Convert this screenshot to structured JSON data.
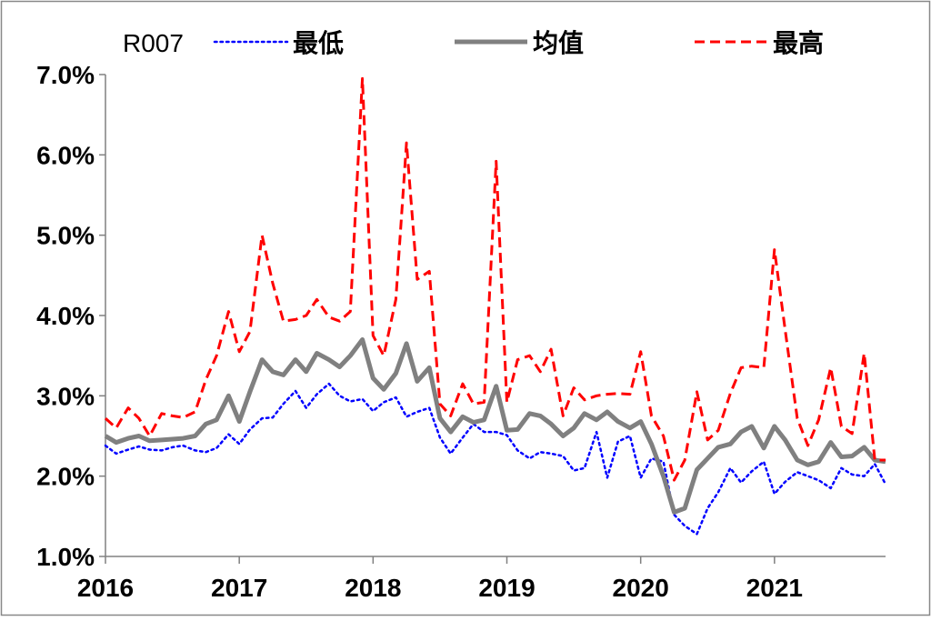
{
  "chart_data": {
    "type": "line",
    "legend_title": "R007",
    "legend_position": "top",
    "grid": false,
    "ylim": [
      0.01,
      0.07
    ],
    "yticks": [
      0.01,
      0.02,
      0.03,
      0.04,
      0.05,
      0.06,
      0.07
    ],
    "ytick_labels": [
      "1.0%",
      "2.0%",
      "3.0%",
      "4.0%",
      "5.0%",
      "6.0%",
      "7.0%"
    ],
    "xlim": [
      2016.0,
      2021.83
    ],
    "xticks": [
      2016,
      2017,
      2018,
      2019,
      2020,
      2021
    ],
    "xtick_labels": [
      "2016",
      "2017",
      "2018",
      "2019",
      "2020",
      "2021"
    ],
    "x": [
      2016.0,
      2016.08,
      2016.17,
      2016.25,
      2016.33,
      2016.42,
      2016.5,
      2016.58,
      2016.67,
      2016.75,
      2016.83,
      2016.92,
      2017.0,
      2017.08,
      2017.17,
      2017.25,
      2017.33,
      2017.42,
      2017.5,
      2017.58,
      2017.67,
      2017.75,
      2017.83,
      2017.92,
      2018.0,
      2018.08,
      2018.17,
      2018.25,
      2018.33,
      2018.42,
      2018.5,
      2018.58,
      2018.67,
      2018.75,
      2018.83,
      2018.92,
      2019.0,
      2019.08,
      2019.17,
      2019.25,
      2019.33,
      2019.42,
      2019.5,
      2019.58,
      2019.67,
      2019.75,
      2019.83,
      2019.92,
      2020.0,
      2020.08,
      2020.17,
      2020.25,
      2020.33,
      2020.42,
      2020.5,
      2020.58,
      2020.67,
      2020.75,
      2020.83,
      2020.92,
      2021.0,
      2021.08,
      2021.17,
      2021.25,
      2021.33,
      2021.42,
      2021.5,
      2021.58,
      2021.67,
      2021.75,
      2021.83
    ],
    "series": [
      {
        "name": "最低",
        "color": "#0000ff",
        "style": "dotted",
        "values": [
          0.0238,
          0.0228,
          0.0233,
          0.0237,
          0.0233,
          0.0232,
          0.0236,
          0.0238,
          0.0232,
          0.023,
          0.0235,
          0.0252,
          0.024,
          0.0258,
          0.0272,
          0.0273,
          0.029,
          0.0306,
          0.0285,
          0.0302,
          0.0315,
          0.03,
          0.0293,
          0.0296,
          0.0281,
          0.0292,
          0.0298,
          0.0274,
          0.028,
          0.0285,
          0.0248,
          0.0228,
          0.0248,
          0.0265,
          0.0255,
          0.0255,
          0.0251,
          0.0232,
          0.0222,
          0.023,
          0.0228,
          0.0225,
          0.0207,
          0.021,
          0.0255,
          0.0198,
          0.0243,
          0.025,
          0.0198,
          0.0222,
          0.0218,
          0.0152,
          0.0138,
          0.0128,
          0.016,
          0.018,
          0.021,
          0.0192,
          0.0206,
          0.0218,
          0.0178,
          0.0193,
          0.0205,
          0.02,
          0.0195,
          0.0185,
          0.021,
          0.0202,
          0.02,
          0.0215,
          0.019
        ]
      },
      {
        "name": "均值",
        "color": "#808080",
        "style": "solid",
        "values": [
          0.025,
          0.0242,
          0.0247,
          0.025,
          0.0244,
          0.0245,
          0.0246,
          0.0247,
          0.025,
          0.0265,
          0.027,
          0.03,
          0.0268,
          0.0305,
          0.0345,
          0.033,
          0.0326,
          0.0345,
          0.033,
          0.0353,
          0.0345,
          0.0336,
          0.035,
          0.037,
          0.0322,
          0.0308,
          0.0328,
          0.0365,
          0.0318,
          0.0335,
          0.0272,
          0.0255,
          0.0274,
          0.0267,
          0.027,
          0.0312,
          0.0257,
          0.0258,
          0.0278,
          0.0275,
          0.0265,
          0.025,
          0.026,
          0.0278,
          0.027,
          0.028,
          0.0268,
          0.026,
          0.0268,
          0.024,
          0.02,
          0.0155,
          0.016,
          0.0208,
          0.0222,
          0.0236,
          0.024,
          0.0255,
          0.0262,
          0.0235,
          0.0262,
          0.0245,
          0.022,
          0.0214,
          0.0218,
          0.0242,
          0.0224,
          0.0225,
          0.0236,
          0.022,
          0.0218
        ]
      },
      {
        "name": "最高",
        "color": "#ff0000",
        "style": "dashed",
        "values": [
          0.0272,
          0.026,
          0.0285,
          0.0272,
          0.025,
          0.0278,
          0.0275,
          0.0273,
          0.028,
          0.032,
          0.035,
          0.0405,
          0.0355,
          0.038,
          0.05,
          0.044,
          0.0393,
          0.0395,
          0.04,
          0.042,
          0.0398,
          0.0393,
          0.0405,
          0.0695,
          0.0375,
          0.035,
          0.042,
          0.0615,
          0.0445,
          0.0455,
          0.029,
          0.0275,
          0.0315,
          0.029,
          0.0292,
          0.0592,
          0.0292,
          0.0345,
          0.035,
          0.033,
          0.0358,
          0.0275,
          0.031,
          0.0295,
          0.03,
          0.0302,
          0.0303,
          0.0302,
          0.0355,
          0.0275,
          0.025,
          0.0195,
          0.022,
          0.0305,
          0.0245,
          0.0257,
          0.0303,
          0.0335,
          0.0337,
          0.0335,
          0.0482,
          0.0382,
          0.0272,
          0.0238,
          0.027,
          0.0335,
          0.0262,
          0.0253,
          0.0353,
          0.022,
          0.022
        ]
      }
    ]
  }
}
